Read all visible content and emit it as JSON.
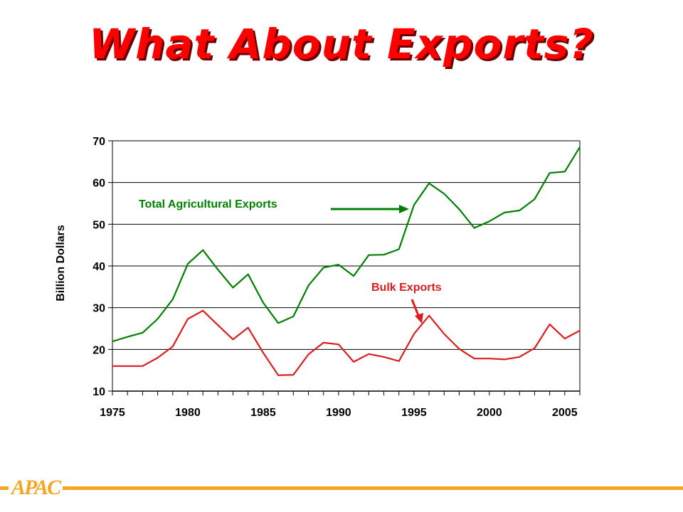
{
  "slide": {
    "title": "What About Exports?",
    "logo_text": "APAC"
  },
  "colors": {
    "title": "#ff0000",
    "total_series": "#008000",
    "bulk_series": "#dd1c1c",
    "accent": "#f5a623"
  },
  "chart_data": {
    "type": "line",
    "title": "",
    "xlabel": "",
    "ylabel": "Billion Dollars",
    "xlim": [
      1975,
      2006
    ],
    "ylim": [
      10,
      70
    ],
    "yticks": [
      10,
      20,
      30,
      40,
      50,
      60,
      70
    ],
    "xticks": [
      1975,
      1980,
      1985,
      1990,
      1995,
      2000,
      2005
    ],
    "grid": true,
    "x": [
      1975,
      1976,
      1977,
      1978,
      1979,
      1980,
      1981,
      1982,
      1983,
      1984,
      1985,
      1986,
      1987,
      1988,
      1989,
      1990,
      1991,
      1992,
      1993,
      1994,
      1995,
      1996,
      1997,
      1998,
      1999,
      2000,
      2001,
      2002,
      2003,
      2004,
      2005,
      2006
    ],
    "series": [
      {
        "name": "Total Agricultural Exports",
        "values": [
          21.9,
          23.0,
          24.0,
          27.3,
          32.0,
          40.5,
          43.8,
          39.1,
          34.8,
          38.0,
          31.2,
          26.3,
          27.9,
          35.3,
          39.6,
          40.3,
          37.6,
          42.6,
          42.7,
          44.0,
          54.6,
          59.8,
          57.3,
          53.6,
          49.1,
          50.7,
          52.8,
          53.3,
          56.0,
          62.3,
          62.6,
          68.5
        ]
      },
      {
        "name": "Bulk Exports",
        "values": [
          16.0,
          16.0,
          16.0,
          18.0,
          20.7,
          27.3,
          29.3,
          25.8,
          22.4,
          25.2,
          19.2,
          13.8,
          13.9,
          18.8,
          21.6,
          21.2,
          17.0,
          18.9,
          18.2,
          17.2,
          23.7,
          28.1,
          23.7,
          20.1,
          17.8,
          17.8,
          17.6,
          18.2,
          20.3,
          26.0,
          22.6,
          24.5
        ]
      }
    ]
  }
}
